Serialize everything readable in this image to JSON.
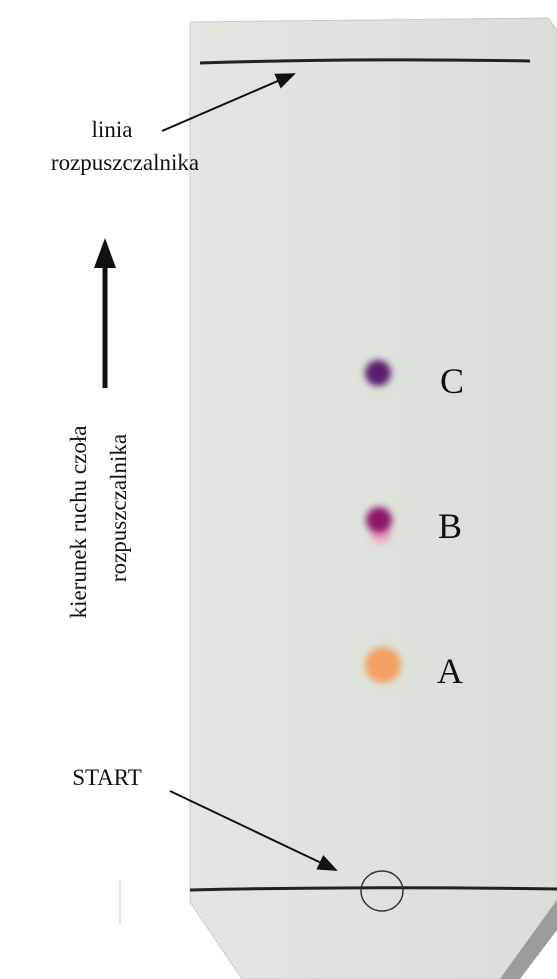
{
  "labels": {
    "solvent_line_1": "linia",
    "solvent_line_2": "rozpuszczalnika",
    "direction_1": "kierunek ruchu czoła",
    "direction_2": "rozpuszczalnika",
    "start": "START"
  },
  "spots": [
    {
      "label": "C"
    },
    {
      "label": "B"
    },
    {
      "label": "A"
    }
  ]
}
